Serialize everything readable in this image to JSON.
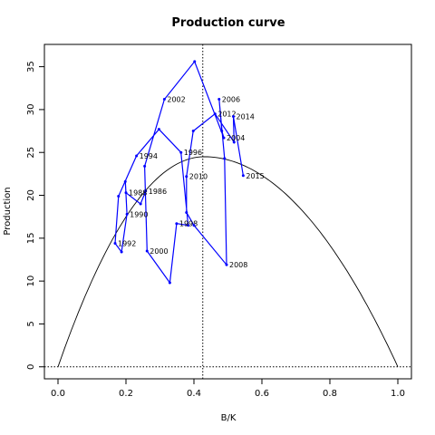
{
  "chart_data": {
    "type": "line",
    "title": "Production curve",
    "xlabel": "B/K",
    "ylabel": "Production",
    "xlim": [
      -0.04,
      1.04
    ],
    "ylim": [
      -1.4,
      37.6
    ],
    "xticks": [
      "0.0",
      "0.2",
      "0.4",
      "0.6",
      "0.8",
      "1.0"
    ],
    "yticks": [
      "0",
      "5",
      "10",
      "15",
      "20",
      "25",
      "30",
      "35"
    ],
    "xtick_values": [
      0,
      0.2,
      0.4,
      0.6,
      0.8,
      1.0
    ],
    "ytick_values": [
      0,
      5,
      10,
      15,
      20,
      25,
      30,
      35
    ],
    "vline_x": 0.426,
    "hline_y": 0,
    "curve": {
      "type": "parabola",
      "r": 0.4,
      "k": 1,
      "peak": [
        0.43,
        24.5
      ],
      "x_range": [
        0,
        1
      ]
    },
    "series": [
      {
        "color": "#0000ff",
        "points": [
          {
            "x": 0.258,
            "y": 20.5,
            "label": "1986"
          },
          {
            "x": 0.243,
            "y": 19.0,
            "label": ""
          },
          {
            "x": 0.2,
            "y": 20.3,
            "label": "1988"
          },
          {
            "x": 0.198,
            "y": 21.6,
            "label": ""
          },
          {
            "x": 0.203,
            "y": 17.8,
            "label": "1990"
          },
          {
            "x": 0.187,
            "y": 13.4,
            "label": ""
          },
          {
            "x": 0.168,
            "y": 14.4,
            "label": "1992"
          },
          {
            "x": 0.178,
            "y": 19.9,
            "label": ""
          },
          {
            "x": 0.231,
            "y": 24.6,
            "label": "1994"
          },
          {
            "x": 0.297,
            "y": 27.7,
            "label": ""
          },
          {
            "x": 0.362,
            "y": 25.0,
            "label": "1996"
          },
          {
            "x": 0.383,
            "y": 16.5,
            "label": ""
          },
          {
            "x": 0.349,
            "y": 16.7,
            "label": "1998"
          },
          {
            "x": 0.329,
            "y": 9.8,
            "label": ""
          },
          {
            "x": 0.262,
            "y": 13.5,
            "label": "2000"
          },
          {
            "x": 0.255,
            "y": 23.4,
            "label": ""
          },
          {
            "x": 0.313,
            "y": 31.2,
            "label": "2002"
          },
          {
            "x": 0.402,
            "y": 35.6,
            "label": ""
          },
          {
            "x": 0.488,
            "y": 26.7,
            "label": "2004"
          },
          {
            "x": 0.482,
            "y": 27.5,
            "label": ""
          },
          {
            "x": 0.474,
            "y": 31.2,
            "label": "2006"
          },
          {
            "x": 0.49,
            "y": 24.3,
            "label": ""
          },
          {
            "x": 0.496,
            "y": 11.9,
            "label": "2008"
          },
          {
            "x": 0.4,
            "y": 16.5,
            "label": ""
          },
          {
            "x": 0.378,
            "y": 18.0,
            "label": ""
          },
          {
            "x": 0.378,
            "y": 22.2,
            "label": "2010"
          },
          {
            "x": 0.398,
            "y": 27.5,
            "label": ""
          },
          {
            "x": 0.462,
            "y": 29.5,
            "label": "2012"
          },
          {
            "x": 0.518,
            "y": 26.2,
            "label": ""
          },
          {
            "x": 0.516,
            "y": 29.2,
            "label": "2014"
          },
          {
            "x": 0.545,
            "y": 22.3,
            "label": "2015"
          }
        ]
      }
    ]
  }
}
